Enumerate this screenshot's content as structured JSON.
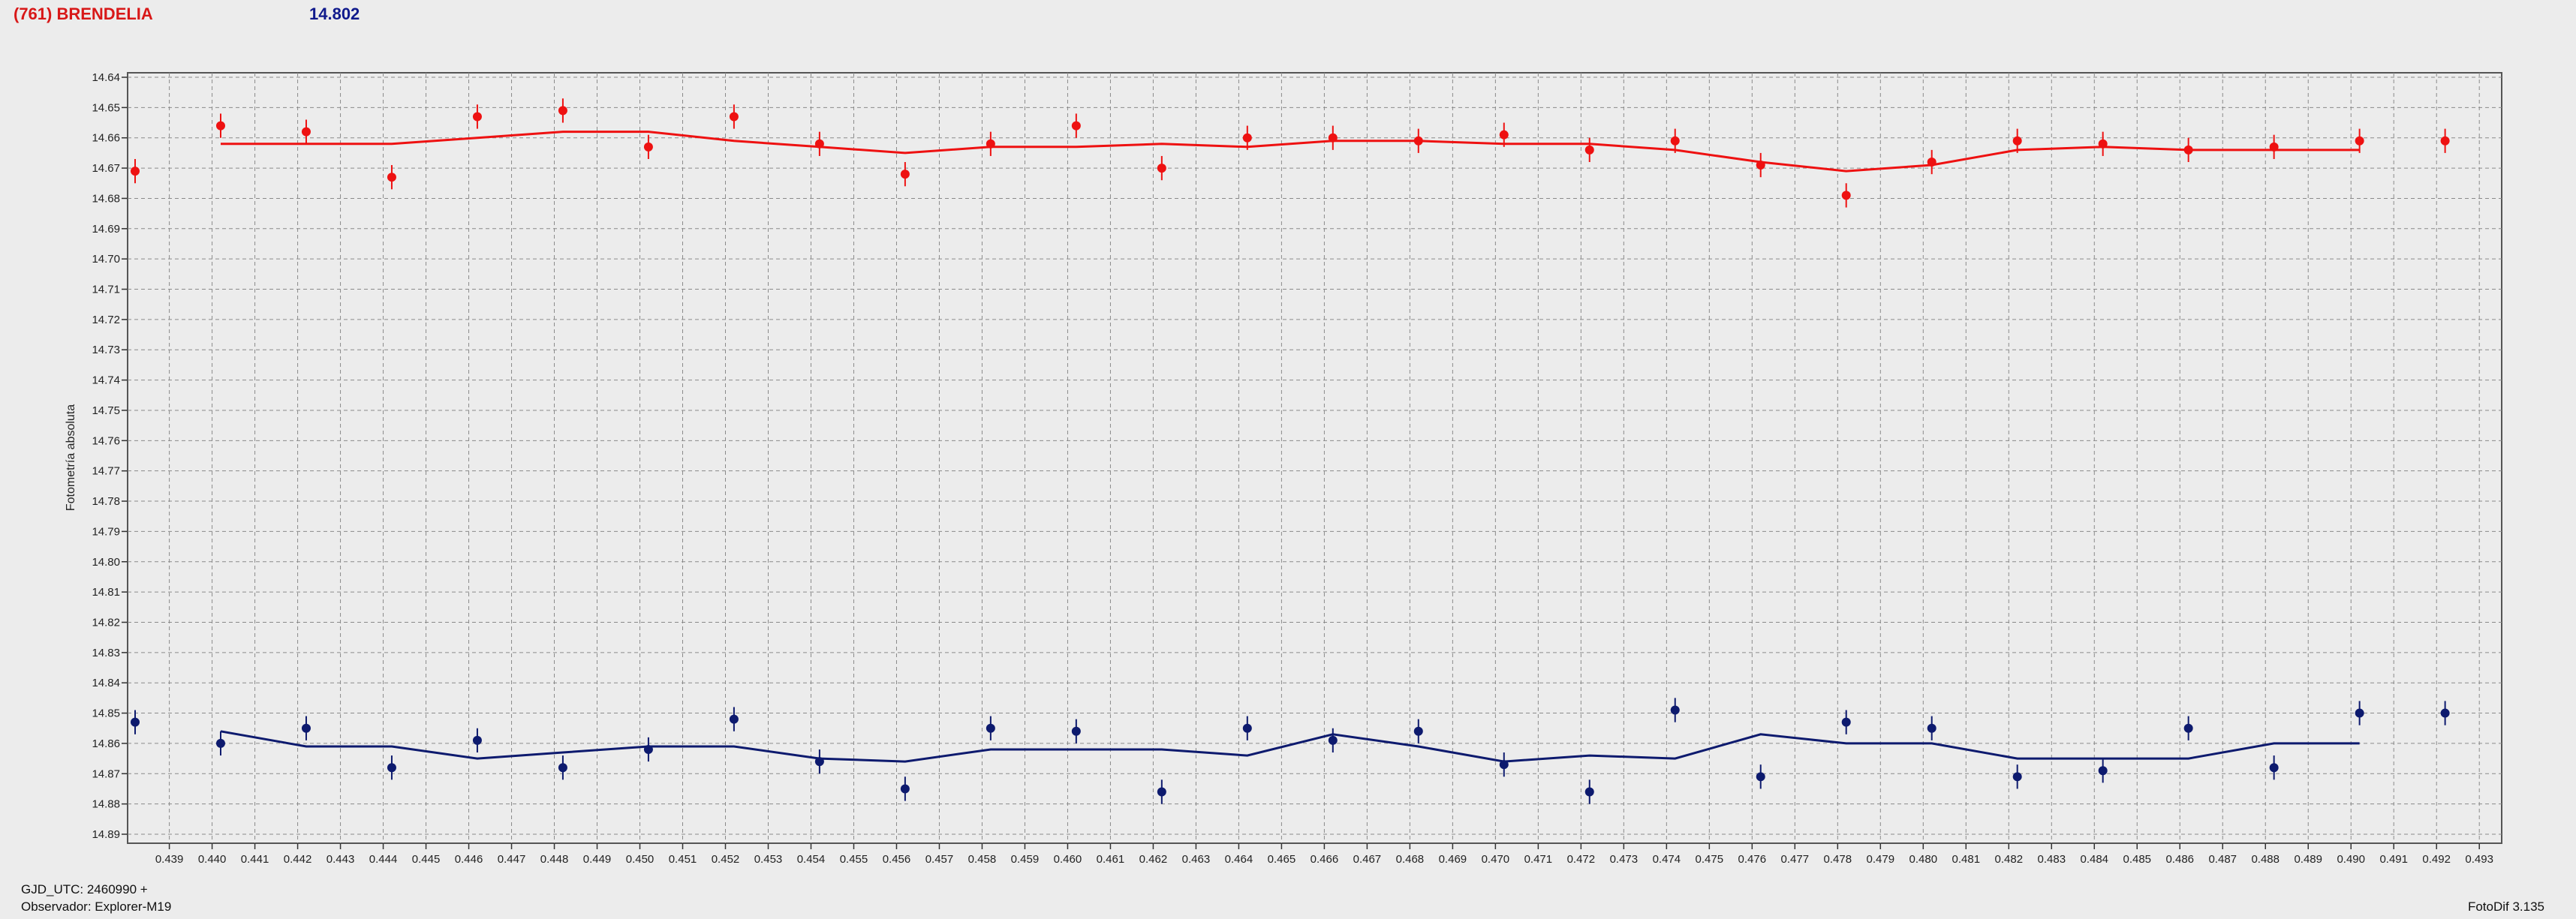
{
  "header": {
    "object": "(761) BRENDELIA",
    "magnitude": "14.802",
    "object_color": "#d81818",
    "magnitude_color": "#101a8c"
  },
  "footer": {
    "gjd": "GJD_UTC: 2460990 +",
    "observer": "Observador: Explorer-M19",
    "version": "FotoDif 3.135"
  },
  "chart_data": {
    "type": "scatter",
    "ylabel": "Fotometría absoluta",
    "xlabel": "",
    "xlim": [
      0.4382,
      0.4934
    ],
    "ylim": [
      14.64,
      14.89
    ],
    "y_inverted": true,
    "grid": true,
    "x_ticks": [
      "0.439",
      "0.440",
      "0.441",
      "0.442",
      "0.443",
      "0.444",
      "0.445",
      "0.446",
      "0.447",
      "0.448",
      "0.449",
      "0.450",
      "0.451",
      "0.452",
      "0.453",
      "0.454",
      "0.455",
      "0.456",
      "0.457",
      "0.458",
      "0.459",
      "0.460",
      "0.461",
      "0.462",
      "0.463",
      "0.464",
      "0.465",
      "0.466",
      "0.467",
      "0.468",
      "0.469",
      "0.470",
      "0.471",
      "0.472",
      "0.473",
      "0.474",
      "0.475",
      "0.476",
      "0.477",
      "0.478",
      "0.479",
      "0.480",
      "0.481",
      "0.482",
      "0.483",
      "0.484",
      "0.485",
      "0.486",
      "0.487",
      "0.488",
      "0.489",
      "0.490",
      "0.491",
      "0.492",
      "0.493"
    ],
    "y_ticks": [
      "14.64",
      "14.65",
      "14.66",
      "14.67",
      "14.68",
      "14.69",
      "14.70",
      "14.71",
      "14.72",
      "14.73",
      "14.74",
      "14.75",
      "14.76",
      "14.77",
      "14.78",
      "14.79",
      "14.80",
      "14.81",
      "14.82",
      "14.83",
      "14.84",
      "14.85",
      "14.86",
      "14.87",
      "14.88",
      "14.89"
    ],
    "series": [
      {
        "color": "#ee1111",
        "x": [
          0.4382,
          0.4402,
          0.4422,
          0.4442,
          0.4462,
          0.4482,
          0.4502,
          0.4522,
          0.4542,
          0.4562,
          0.4582,
          0.4602,
          0.4622,
          0.4642,
          0.4662,
          0.4682,
          0.4702,
          0.4722,
          0.4742,
          0.4762,
          0.4782,
          0.4802,
          0.4822,
          0.4842,
          0.4862,
          0.4882,
          0.4902,
          0.4922
        ],
        "y": [
          14.671,
          14.656,
          14.658,
          14.673,
          14.653,
          14.651,
          14.663,
          14.653,
          14.662,
          14.672,
          14.662,
          14.656,
          14.67,
          14.66,
          14.66,
          14.661,
          14.659,
          14.664,
          14.661,
          14.669,
          14.679,
          14.668,
          14.661,
          14.662,
          14.664,
          14.663,
          14.661,
          14.661
        ],
        "err": [
          0.004,
          0.004,
          0.004,
          0.004,
          0.004,
          0.004,
          0.004,
          0.004,
          0.004,
          0.004,
          0.004,
          0.004,
          0.004,
          0.004,
          0.004,
          0.004,
          0.004,
          0.004,
          0.004,
          0.004,
          0.004,
          0.004,
          0.004,
          0.004,
          0.004,
          0.004,
          0.004,
          0.004
        ],
        "fit_x": [
          0.4402,
          0.4422,
          0.4442,
          0.4462,
          0.4482,
          0.4502,
          0.4522,
          0.4542,
          0.4562,
          0.4582,
          0.4602,
          0.4622,
          0.4642,
          0.4662,
          0.4682,
          0.4702,
          0.4722,
          0.4742,
          0.4762,
          0.4782,
          0.4802,
          0.4822,
          0.4842,
          0.4862,
          0.4882,
          0.4902
        ],
        "fit_y": [
          14.662,
          14.662,
          14.662,
          14.66,
          14.658,
          14.658,
          14.661,
          14.663,
          14.665,
          14.663,
          14.663,
          14.662,
          14.663,
          14.661,
          14.661,
          14.662,
          14.662,
          14.664,
          14.668,
          14.671,
          14.669,
          14.664,
          14.663,
          14.664,
          14.664,
          14.664
        ]
      },
      {
        "color": "#0d1a6e",
        "x": [
          0.4382,
          0.4402,
          0.4422,
          0.4442,
          0.4462,
          0.4482,
          0.4502,
          0.4522,
          0.4542,
          0.4562,
          0.4582,
          0.4602,
          0.4622,
          0.4642,
          0.4662,
          0.4682,
          0.4702,
          0.4722,
          0.4742,
          0.4762,
          0.4782,
          0.4802,
          0.4822,
          0.4842,
          0.4862,
          0.4882,
          0.4902,
          0.4922
        ],
        "y": [
          14.853,
          14.86,
          14.855,
          14.868,
          14.859,
          14.868,
          14.862,
          14.852,
          14.866,
          14.875,
          14.855,
          14.856,
          14.876,
          14.855,
          14.859,
          14.856,
          14.867,
          14.876,
          14.849,
          14.871,
          14.853,
          14.855,
          14.871,
          14.869,
          14.855,
          14.868,
          14.85,
          14.85
        ],
        "err": [
          0.004,
          0.004,
          0.004,
          0.004,
          0.004,
          0.004,
          0.004,
          0.004,
          0.004,
          0.004,
          0.004,
          0.004,
          0.004,
          0.004,
          0.004,
          0.004,
          0.004,
          0.004,
          0.004,
          0.004,
          0.004,
          0.004,
          0.004,
          0.004,
          0.004,
          0.004,
          0.004,
          0.004
        ],
        "fit_x": [
          0.4402,
          0.4422,
          0.4442,
          0.4462,
          0.4482,
          0.4502,
          0.4522,
          0.4542,
          0.4562,
          0.4582,
          0.4602,
          0.4622,
          0.4642,
          0.4662,
          0.4682,
          0.4702,
          0.4722,
          0.4742,
          0.4762,
          0.4782,
          0.4802,
          0.4822,
          0.4842,
          0.4862,
          0.4882,
          0.4902
        ],
        "fit_y": [
          14.856,
          14.861,
          14.861,
          14.865,
          14.863,
          14.861,
          14.861,
          14.865,
          14.866,
          14.862,
          14.862,
          14.862,
          14.864,
          14.857,
          14.861,
          14.866,
          14.864,
          14.865,
          14.857,
          14.86,
          14.86,
          14.865,
          14.865,
          14.865,
          14.86,
          14.86
        ]
      }
    ]
  }
}
